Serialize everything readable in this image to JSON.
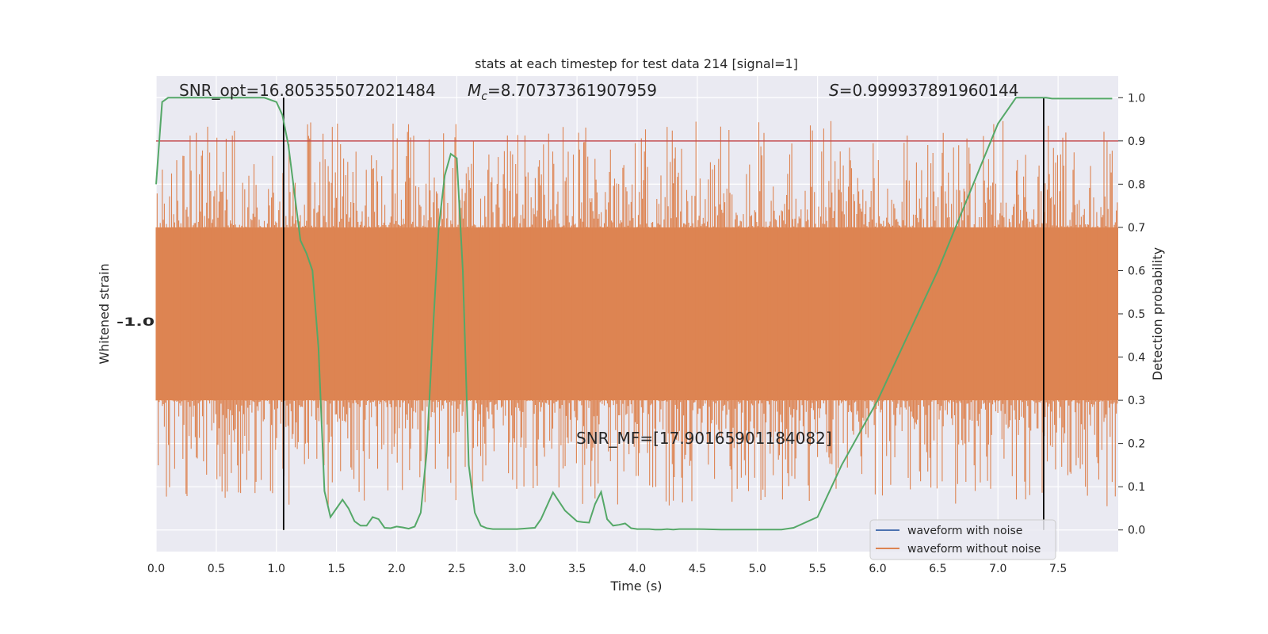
{
  "chart_data": {
    "type": "line",
    "title": "stats at each timestep for test data 214 [signal=1]",
    "xlabel": "Time (s)",
    "ylabel_left": "Whitened strain",
    "ylabel_right": "Detection probability",
    "xlim": [
      0.0,
      8.0
    ],
    "ylim_right": [
      -0.05,
      1.05
    ],
    "xticks": [
      "0.0",
      "0.5",
      "1.0",
      "1.5",
      "2.0",
      "2.5",
      "3.0",
      "3.5",
      "4.0",
      "4.5",
      "5.0",
      "5.5",
      "6.0",
      "6.5",
      "7.0",
      "7.5"
    ],
    "yticks_right": [
      "0.0",
      "0.1",
      "0.2",
      "0.3",
      "0.4",
      "0.5",
      "0.6",
      "0.7",
      "0.8",
      "0.9",
      "1.0"
    ],
    "grid": true,
    "legend_position": "lower-right",
    "annotations": {
      "snr_opt": "SNR_opt=16.805355072021484",
      "mc_symbol": "M",
      "mc_sub": "c",
      "mc_value": "=8.70737361907959",
      "s_symbol": "S",
      "s_value": "=0.999937891960144",
      "snr_mf": "SNR_MF=[17.90165901184082]"
    },
    "threshold": 0.9,
    "vlines": [
      1.06,
      7.38
    ],
    "series": [
      {
        "name": "waveform with noise",
        "color": "#4c72b0",
        "kind": "legend-only"
      },
      {
        "name": "waveform without noise",
        "color": "#dd8452",
        "kind": "dense-noise",
        "band_low": 0.3,
        "band_high": 0.7,
        "max_spike_up": 1.0,
        "max_spike_down": 0.0
      },
      {
        "name": "detection probability",
        "color": "#55a868",
        "x": [
          0.0,
          0.05,
          0.1,
          0.2,
          0.3,
          0.4,
          0.5,
          0.6,
          0.7,
          0.8,
          0.9,
          1.0,
          1.05,
          1.1,
          1.15,
          1.2,
          1.25,
          1.3,
          1.35,
          1.4,
          1.45,
          1.5,
          1.55,
          1.6,
          1.65,
          1.7,
          1.75,
          1.8,
          1.85,
          1.9,
          1.95,
          2.0,
          2.05,
          2.1,
          2.15,
          2.2,
          2.25,
          2.3,
          2.35,
          2.4,
          2.45,
          2.5,
          2.55,
          2.6,
          2.65,
          2.7,
          2.75,
          2.8,
          2.85,
          2.9,
          2.95,
          3.0,
          3.05,
          3.1,
          3.15,
          3.2,
          3.3,
          3.4,
          3.5,
          3.55,
          3.6,
          3.65,
          3.7,
          3.75,
          3.8,
          3.85,
          3.9,
          3.95,
          4.0,
          4.05,
          4.1,
          4.15,
          4.2,
          4.25,
          4.3,
          4.35,
          4.4,
          4.5,
          4.7,
          4.9,
          5.0,
          5.1,
          5.2,
          5.3,
          5.5,
          5.7,
          6.0,
          6.5,
          7.0,
          7.15,
          7.2,
          7.25,
          7.3,
          7.35,
          7.4,
          7.45,
          7.5,
          7.55,
          7.6,
          7.7,
          7.9,
          7.95
        ],
        "y": [
          0.8,
          0.99,
          1.0,
          1.0,
          1.0,
          1.0,
          1.0,
          1.0,
          1.0,
          1.0,
          1.0,
          0.99,
          0.96,
          0.89,
          0.78,
          0.67,
          0.64,
          0.6,
          0.42,
          0.09,
          0.03,
          0.05,
          0.07,
          0.05,
          0.02,
          0.01,
          0.01,
          0.03,
          0.025,
          0.005,
          0.004,
          0.008,
          0.006,
          0.003,
          0.008,
          0.04,
          0.18,
          0.45,
          0.7,
          0.82,
          0.87,
          0.86,
          0.6,
          0.15,
          0.04,
          0.01,
          0.004,
          0.002,
          0.002,
          0.002,
          0.002,
          0.002,
          0.003,
          0.004,
          0.005,
          0.025,
          0.087,
          0.045,
          0.02,
          0.018,
          0.017,
          0.06,
          0.088,
          0.025,
          0.01,
          0.012,
          0.015,
          0.004,
          0.002,
          0.002,
          0.002,
          0.001,
          0.001,
          0.002,
          0.001,
          0.002,
          0.002,
          0.002,
          0.001,
          0.001,
          0.001,
          0.001,
          0.001,
          0.005,
          0.03,
          0.15,
          0.3,
          0.6,
          0.94,
          1.0,
          1.0,
          1.0,
          1.0,
          1.0,
          1.0,
          0.998,
          0.998,
          0.998,
          0.998,
          0.998,
          0.998,
          0.998
        ]
      }
    ],
    "threshold_color": "#c44e52",
    "vline_color": "#000000"
  },
  "left_axis_glyph": "-1.0"
}
